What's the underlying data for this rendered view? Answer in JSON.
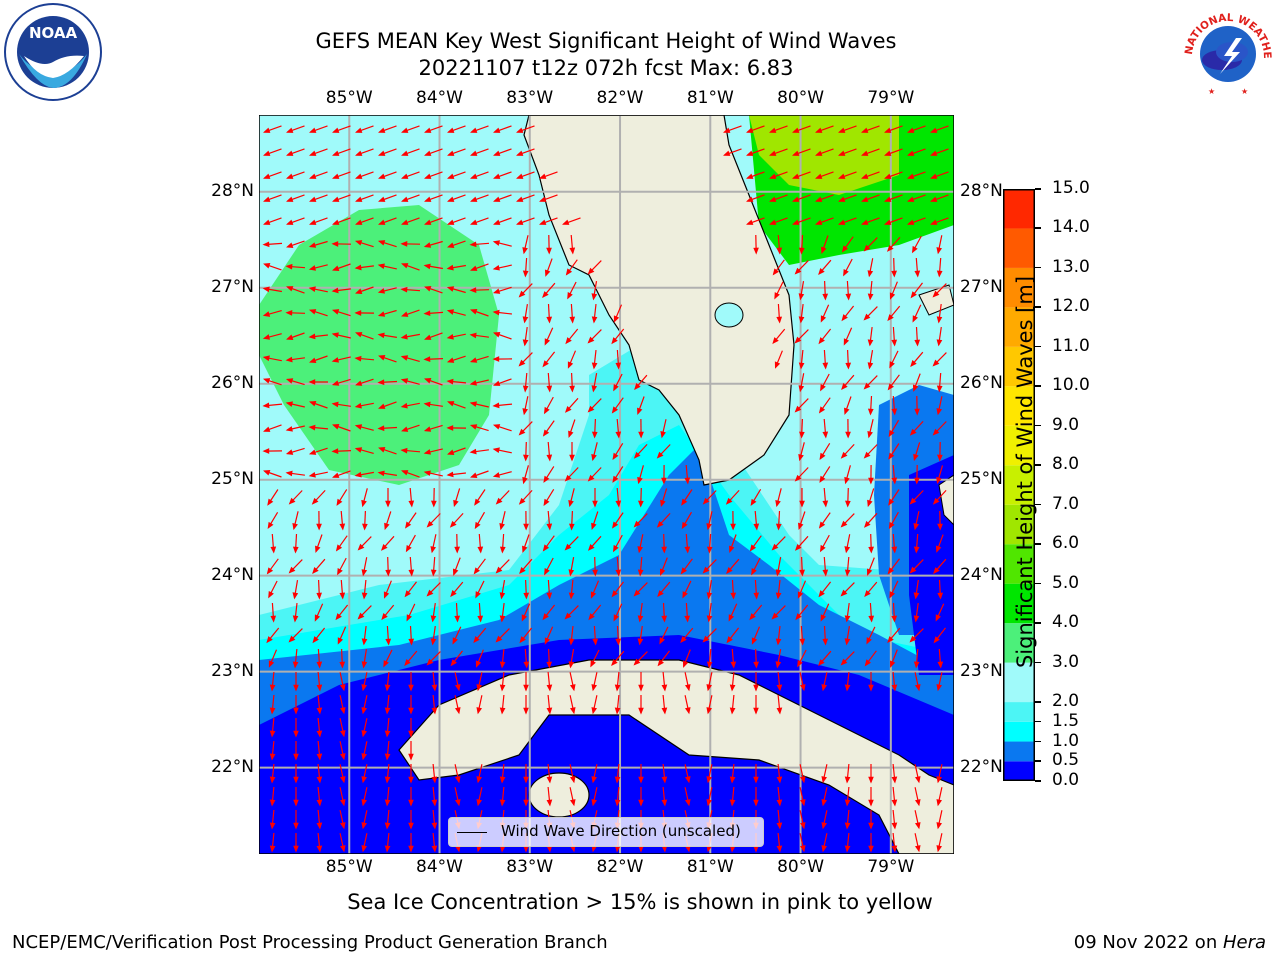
{
  "header": {
    "title_line1": "GEFS MEAN Key West Significant Height of Wind Waves",
    "title_line2": "20221107 t12z 072h fcst   Max: 6.83"
  },
  "logos": {
    "left": "NOAA",
    "right": "NATIONAL WEATHER SERVICE"
  },
  "map": {
    "lon_labels": [
      "85°W",
      "84°W",
      "83°W",
      "82°W",
      "81°W",
      "80°W",
      "79°W"
    ],
    "lat_labels": [
      "28°N",
      "27°N",
      "26°N",
      "25°N",
      "24°N",
      "23°N",
      "22°N"
    ],
    "extent": {
      "lon_min": -86.0,
      "lon_max": -78.3,
      "lat_min": 21.1,
      "lat_max": 28.8
    },
    "legend_text": "Wind Wave Direction (unscaled)",
    "arrow_color": "#ff0000",
    "land_color": "#eeeedd"
  },
  "colorbar": {
    "title": "Significant Height of Wind Waves [m]",
    "ticks": [
      "0.0",
      "0.5",
      "1.0",
      "1.5",
      "2.0",
      "3.0",
      "4.0",
      "5.0",
      "6.0",
      "7.0",
      "8.0",
      "9.0",
      "10.0",
      "11.0",
      "12.0",
      "13.0",
      "14.0",
      "15.0"
    ],
    "colors": [
      "#0000ff",
      "#0a78f0",
      "#00ffff",
      "#4cf5f5",
      "#a0fafa",
      "#4cf07a",
      "#00e600",
      "#50e600",
      "#a0e600",
      "#c8f000",
      "#f0f000",
      "#ffe600",
      "#ffc800",
      "#ffaa00",
      "#ff8c00",
      "#ff5a00",
      "#ff2800"
    ]
  },
  "footer": {
    "note": "Sea Ice Concentration > 15% is shown in pink to yellow",
    "credit": "NCEP/EMC/Verification Post Processing Product Generation Branch",
    "date": "09 Nov 2022 on ",
    "host": "Hera"
  }
}
